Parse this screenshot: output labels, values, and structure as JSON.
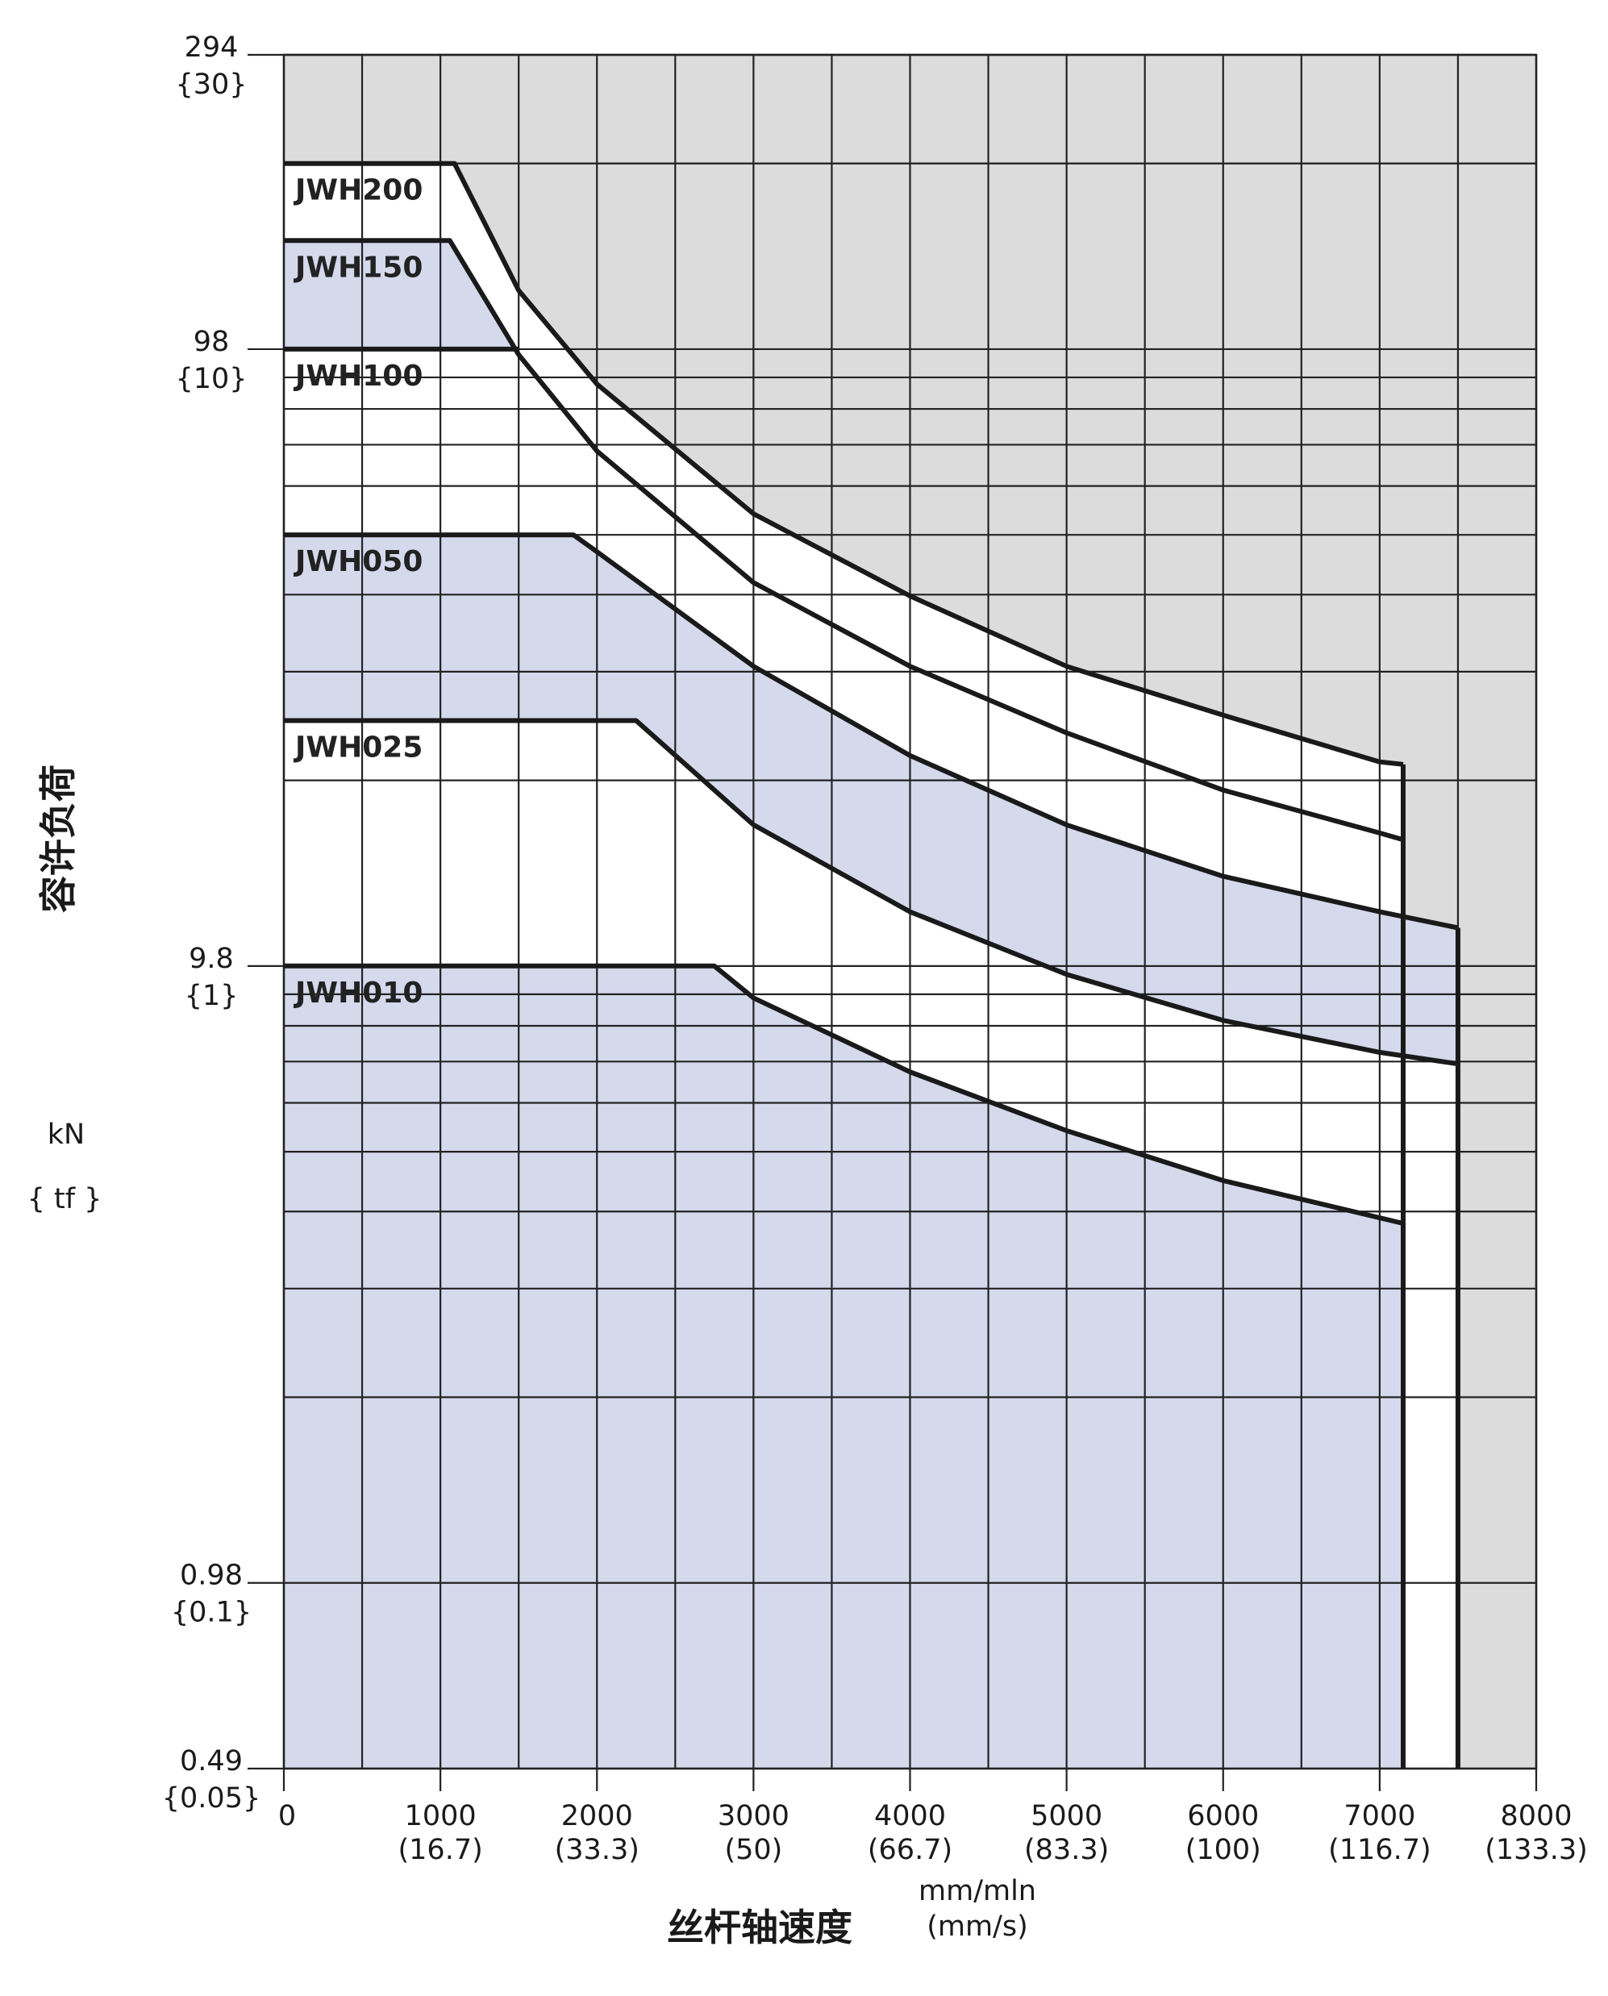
{
  "chart_data": {
    "type": "line",
    "title": "",
    "xlabel": "丝杆轴速度",
    "xunit": [
      "mm/mln",
      "(mm/s)"
    ],
    "ylabel": "容许负荷",
    "yunit": [
      "kN",
      "{ tf }"
    ],
    "xlim": [
      0,
      8000
    ],
    "ylim": [
      0.49,
      294
    ],
    "yscale": "log",
    "grid": true,
    "colors": {
      "allowable_region": "#d4d9ec",
      "excluded_region": "#dcdcdc",
      "curve": "#1a1a1a",
      "grid": "#222222"
    },
    "x_ticks": [
      {
        "value": 0,
        "label": "0",
        "sub": ""
      },
      {
        "value": 1000,
        "label": "1000",
        "sub": "(16.7)"
      },
      {
        "value": 2000,
        "label": "2000",
        "sub": "(33.3)"
      },
      {
        "value": 3000,
        "label": "3000",
        "sub": "(50)"
      },
      {
        "value": 4000,
        "label": "4000",
        "sub": "(66.7)"
      },
      {
        "value": 5000,
        "label": "5000",
        "sub": "(83.3)"
      },
      {
        "value": 6000,
        "label": "6000",
        "sub": "(100)"
      },
      {
        "value": 7000,
        "label": "7000",
        "sub": "(116.7)"
      },
      {
        "value": 8000,
        "label": "8000",
        "sub": "(133.3)"
      }
    ],
    "y_ticks": [
      {
        "value": 294,
        "label": "294",
        "sub": "{30}"
      },
      {
        "value": 98,
        "label": "98",
        "sub": "{10}"
      },
      {
        "value": 9.8,
        "label": "9.8",
        "sub": "{1}"
      },
      {
        "value": 0.98,
        "label": "0.98",
        "sub": "{0.1}"
      },
      {
        "value": 0.49,
        "label": "0.49",
        "sub": "{0.05}"
      }
    ],
    "series": [
      {
        "name": "JWH200",
        "x": [
          0,
          1090,
          1500,
          2000,
          3000,
          4000,
          5000,
          6000,
          7000,
          7150
        ],
        "y": [
          196,
          196,
          122,
          86,
          53,
          39,
          30,
          25,
          21,
          20.8
        ],
        "end_speed": 7150
      },
      {
        "name": "JWH150",
        "x": [
          0,
          1060,
          1500,
          2000,
          3000,
          4000,
          5000,
          6000,
          7000,
          7150
        ],
        "y": [
          147,
          147,
          96,
          67,
          41,
          30,
          23.4,
          18.9,
          16.1,
          15.7
        ],
        "end_speed": 7150
      },
      {
        "name": "JWH100",
        "x": [
          0,
          1500
        ],
        "y": [
          98,
          98
        ],
        "end_speed": 1500
      },
      {
        "name": "JWH050",
        "x": [
          0,
          1850,
          2000,
          3000,
          4000,
          5000,
          6000,
          7000,
          7500
        ],
        "y": [
          49,
          49,
          46,
          30,
          21.5,
          16.6,
          13.7,
          12,
          11.3
        ],
        "end_speed": 7500
      },
      {
        "name": "JWH025",
        "x": [
          0,
          2250,
          3000,
          4000,
          5000,
          6000,
          7000,
          7500
        ],
        "y": [
          24.5,
          24.5,
          16.6,
          12,
          9.5,
          8,
          7.1,
          6.8
        ],
        "end_speed": 7500
      },
      {
        "name": "JWH010",
        "x": [
          0,
          2750,
          3000,
          4000,
          5000,
          6000,
          7150
        ],
        "y": [
          9.8,
          9.8,
          8.7,
          6.6,
          5.3,
          4.4,
          3.75
        ],
        "end_speed": 7150
      }
    ]
  }
}
